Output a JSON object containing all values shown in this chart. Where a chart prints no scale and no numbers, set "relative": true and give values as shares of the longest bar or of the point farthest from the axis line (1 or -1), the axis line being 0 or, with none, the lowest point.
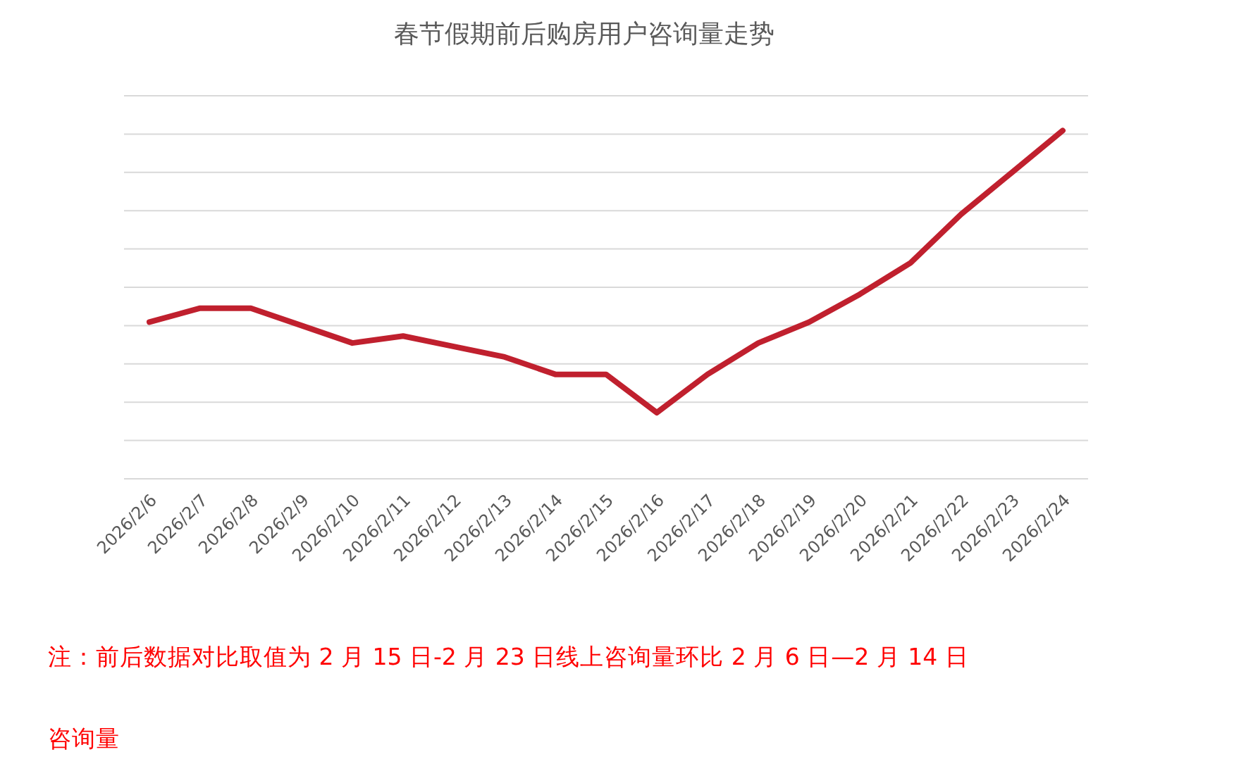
{
  "chart_data": {
    "type": "line",
    "title": "春节假期前后购房用户咨询量走势",
    "relative": true,
    "grid": true,
    "marker": "none",
    "line_style": "solid",
    "categories": [
      "2026/2/6",
      "2026/2/7",
      "2026/2/8",
      "2026/2/9",
      "2026/2/10",
      "2026/2/11",
      "2026/2/12",
      "2026/2/13",
      "2026/2/14",
      "2026/2/15",
      "2026/2/16",
      "2026/2/17",
      "2026/2/18",
      "2026/2/19",
      "2026/2/20",
      "2026/2/21",
      "2026/2/22",
      "2026/2/23",
      "2026/2/24"
    ],
    "series": [
      {
        "color": "#c0202e",
        "values": [
          0.45,
          0.49,
          0.49,
          0.44,
          0.39,
          0.41,
          0.38,
          0.35,
          0.3,
          0.3,
          0.19,
          0.3,
          0.39,
          0.45,
          0.53,
          0.62,
          0.76,
          0.88,
          1
        ]
      }
    ],
    "annotations": [
      "注：前后数据对比取值为 2 月 15 日-2 月 23 日线上咨询量环比 2 月 6 日—2 月 14 日咨询量"
    ]
  }
}
